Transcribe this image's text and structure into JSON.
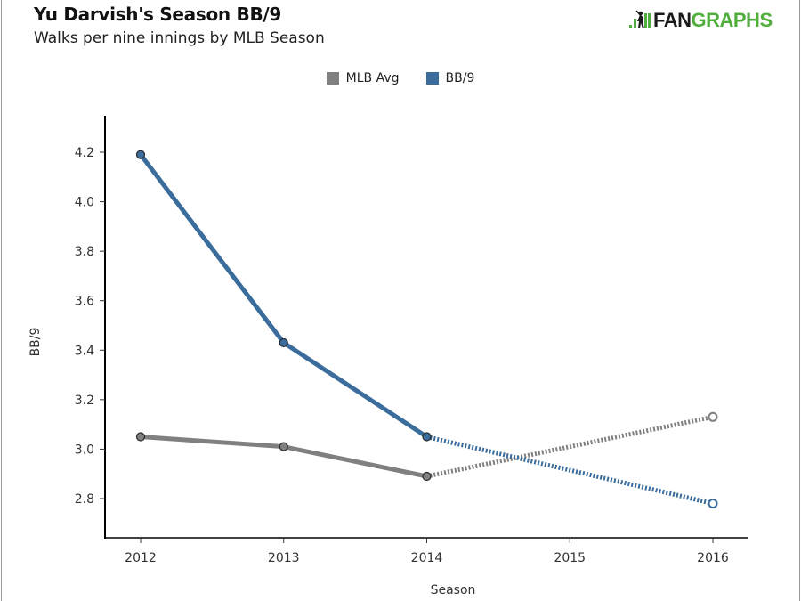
{
  "header": {
    "title": "Yu Darvish's Season BB/9",
    "subtitle": "Walks per nine innings by MLB Season"
  },
  "logo": {
    "icon": "fangraphs-batter-icon",
    "text_dark": "FAN",
    "text_green": "GRAPHS"
  },
  "colors": {
    "bb9": "#3a6d9c",
    "mlb_avg": "#808080",
    "axis": "#000000",
    "logo_green": "#50ae3c"
  },
  "chart_data": {
    "type": "line",
    "title": "Yu Darvish's Season BB/9",
    "subtitle": "Walks per nine innings by MLB Season",
    "xlabel": "Season",
    "ylabel": "BB/9",
    "x": [
      2012,
      2013,
      2014,
      2015,
      2016
    ],
    "x_tick_labels": [
      "2012",
      "2013",
      "2014",
      "2015",
      "2016"
    ],
    "y_tick_labels": [
      "2.8",
      "3.0",
      "3.2",
      "3.4",
      "3.6",
      "3.8",
      "4.0",
      "4.2"
    ],
    "y_ticks": [
      2.8,
      3.0,
      3.2,
      3.4,
      3.6,
      3.8,
      4.0,
      4.2
    ],
    "ylim": [
      2.65,
      4.35
    ],
    "xlim": [
      2011.75,
      2016.25
    ],
    "grid": false,
    "legend_position": "top-center",
    "legend": [
      "MLB Avg",
      "BB/9"
    ],
    "series": [
      {
        "name": "MLB Avg",
        "color": "#808080",
        "actual": [
          {
            "x": 2012,
            "y": 3.05
          },
          {
            "x": 2013,
            "y": 3.01
          },
          {
            "x": 2014,
            "y": 2.89
          }
        ],
        "projected": [
          {
            "x": 2014,
            "y": 2.89
          },
          {
            "x": 2016,
            "y": 3.13
          }
        ]
      },
      {
        "name": "BB/9",
        "color": "#3a6d9c",
        "actual": [
          {
            "x": 2012,
            "y": 4.19
          },
          {
            "x": 2013,
            "y": 3.43
          },
          {
            "x": 2014,
            "y": 3.05
          }
        ],
        "projected": [
          {
            "x": 2014,
            "y": 3.05
          },
          {
            "x": 2016,
            "y": 2.78
          }
        ]
      }
    ]
  }
}
